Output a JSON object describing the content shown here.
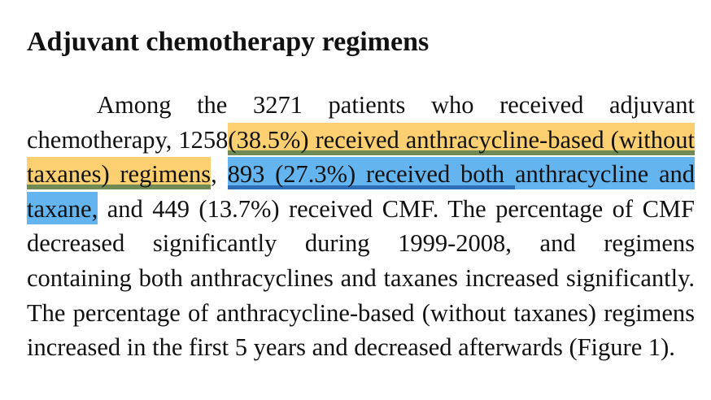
{
  "section": {
    "title": "Adjuvant chemotherapy regimens"
  },
  "paragraph": {
    "part1": "Among the 3271 patients who received adjuvant chemotherapy, 1258",
    "highlight_orange": "(38.5%) received anthracycline-based (without taxanes) regimens",
    "part2": ", ",
    "highlight_blue_line1": "893 (27.3%) received both ",
    "highlight_blue_line2": "anthracycline and taxane,",
    "part3": " and 449 (13.7%) received CMF. The percentage of CMF decreased significantly during 1999-2008, and regimens containing both anthracyclines and taxanes increased significantly. The percentage of anthracycline-based (without taxanes) regimens increased in the first 5 years and decreased afterwards (Figure 1)."
  },
  "colors": {
    "highlight_orange": "#fcd070",
    "highlight_blue": "#63b4ef",
    "underline_green": "#6f8a55",
    "underline_blue": "#2f6fb7"
  }
}
